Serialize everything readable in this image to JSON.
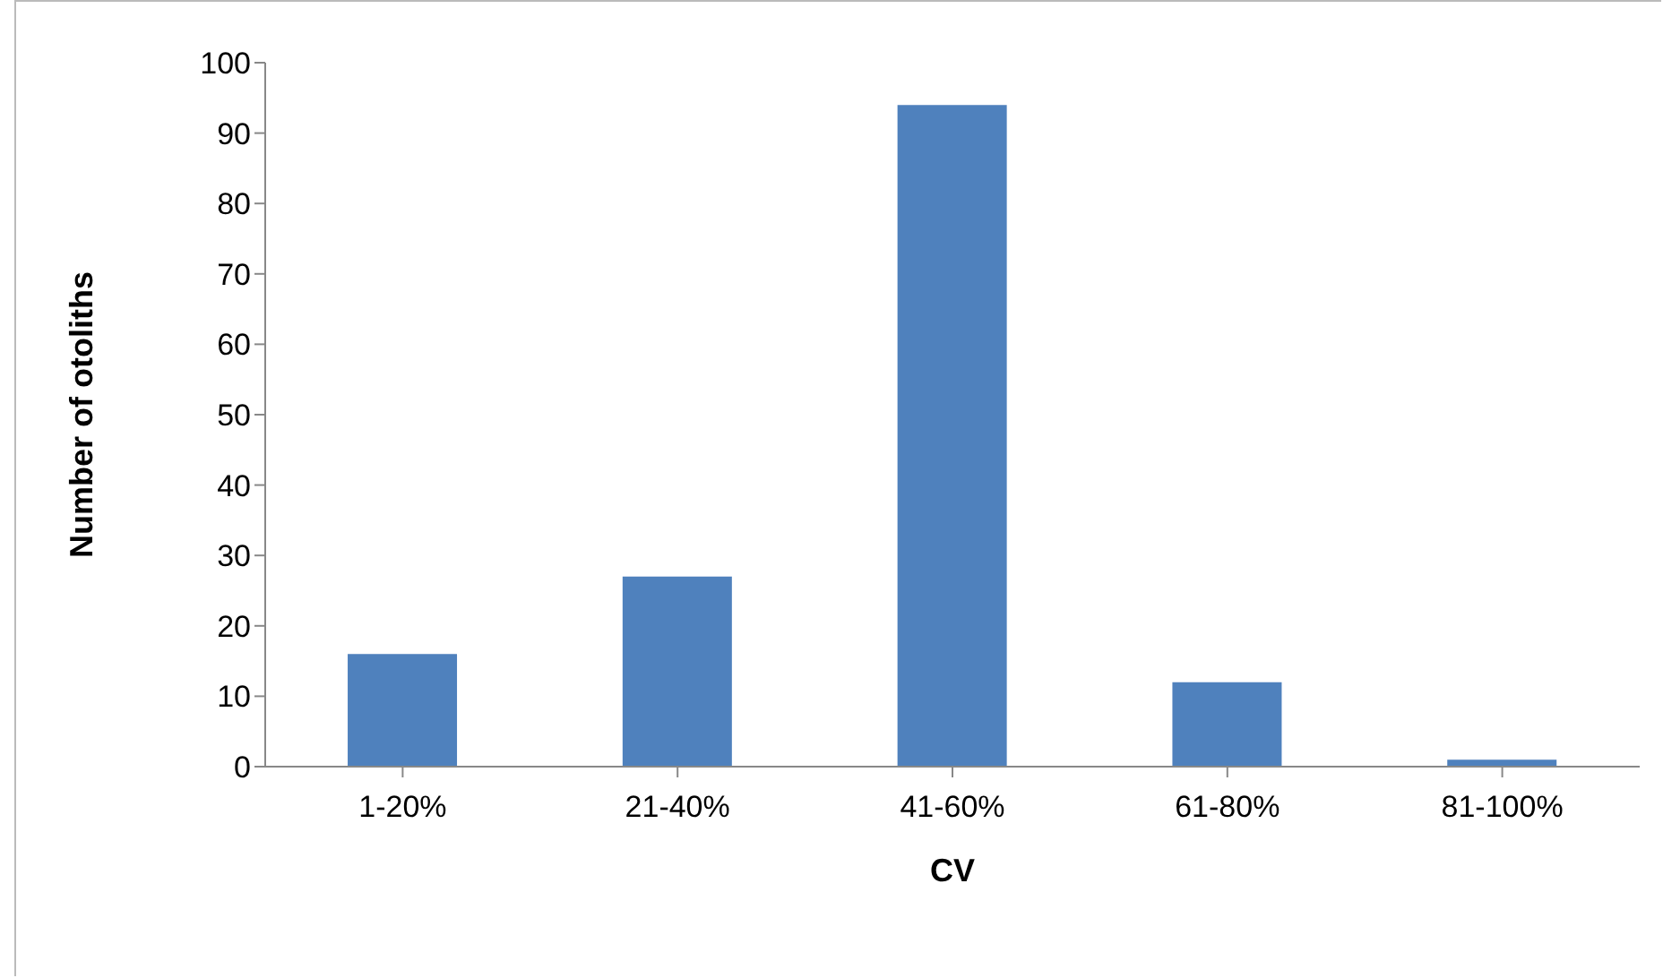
{
  "chart_data": {
    "type": "bar",
    "xlabel": "CV",
    "ylabel": "Number of otoliths",
    "categories": [
      "1-20%",
      "21-40%",
      "41-60%",
      "61-80%",
      "81-100%"
    ],
    "values": [
      16,
      27,
      94,
      12,
      1
    ],
    "color": "#4f81bd",
    "ylim": [
      0,
      100
    ],
    "yticks": [
      0,
      10,
      20,
      30,
      40,
      50,
      60,
      70,
      80,
      90,
      100
    ],
    "grid": false,
    "legend": false
  }
}
